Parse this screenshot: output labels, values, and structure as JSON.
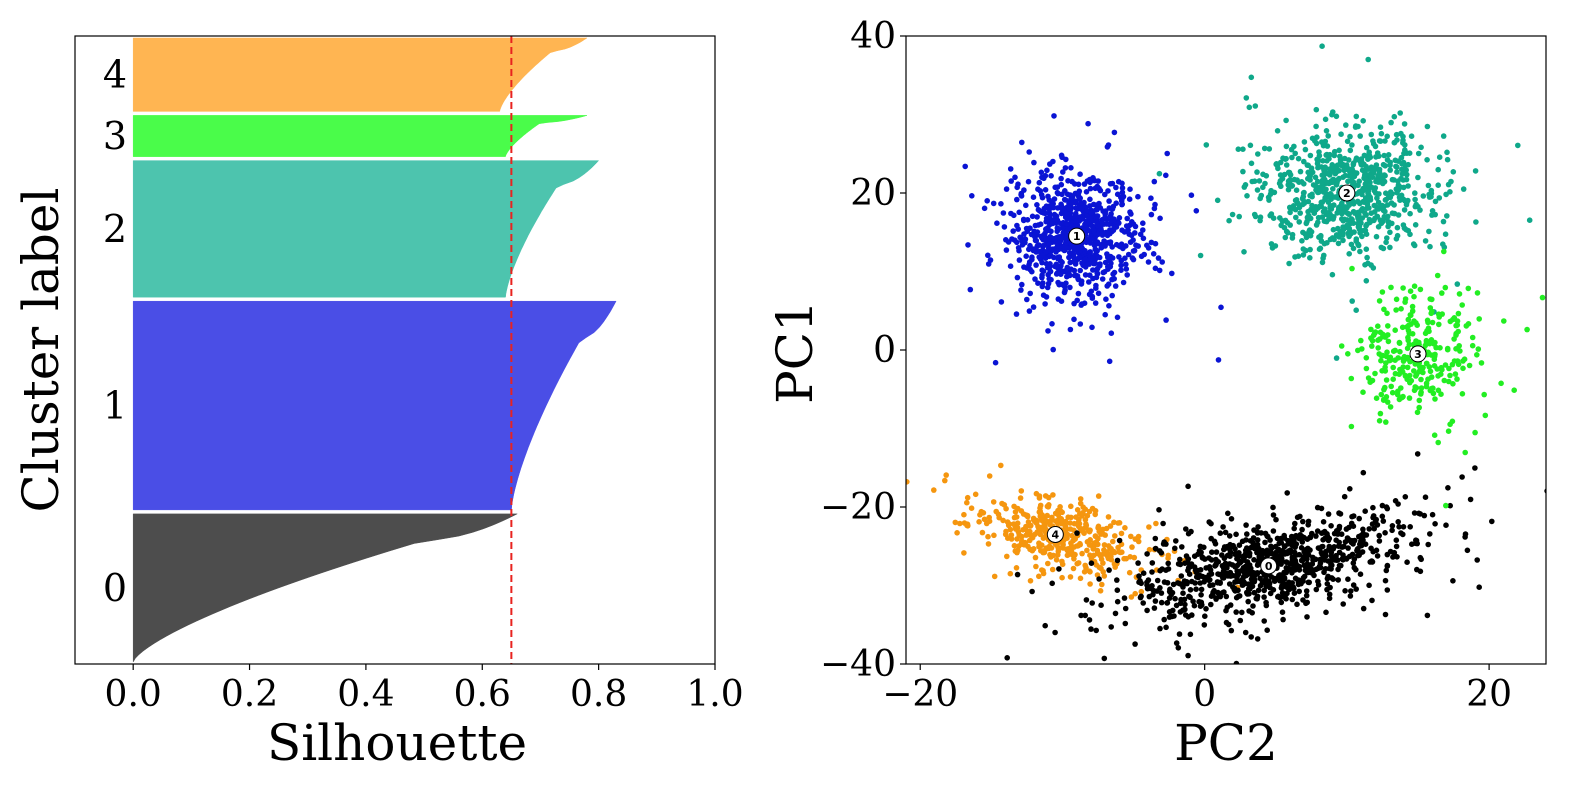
{
  "chart_data": [
    {
      "type": "silhouette",
      "xlabel": "Silhouette",
      "ylabel": "Cluster label",
      "xlim": [
        -0.1,
        1.0
      ],
      "xticks": [
        "0.0",
        "0.2",
        "0.4",
        "0.6",
        "0.8",
        "1.0"
      ],
      "average_score": 0.65,
      "average_line_color": "#e8231f",
      "clusters": [
        {
          "label": "0",
          "size": 1150,
          "min": 0.0,
          "knee": 0.5,
          "max": 0.66,
          "color": "#4d4d4d"
        },
        {
          "label": "1",
          "size": 1620,
          "min": 0.65,
          "knee": 0.77,
          "max": 0.83,
          "color": "#4a4ee6"
        },
        {
          "label": "2",
          "size": 1060,
          "min": 0.64,
          "knee": 0.73,
          "max": 0.8,
          "color": "#4dc4ae"
        },
        {
          "label": "3",
          "size": 320,
          "min": 0.64,
          "knee": 0.7,
          "max": 0.78,
          "color": "#4afc4a"
        },
        {
          "label": "4",
          "size": 570,
          "min": 0.63,
          "knee": 0.72,
          "max": 0.78,
          "color": "#ffb552"
        }
      ]
    },
    {
      "type": "scatter",
      "xlabel": "PC2",
      "ylabel": "PC1",
      "xlim": [
        -21,
        24
      ],
      "ylim": [
        -40,
        40
      ],
      "xticks": [
        "−20",
        "0",
        "20"
      ],
      "yticks": [
        "−40",
        "−20",
        "0",
        "20",
        "40"
      ],
      "clusters": [
        {
          "label": "0",
          "center": [
            4.5,
            -27.5
          ],
          "color": "#000000",
          "spread": [
            5.0,
            2.8
          ],
          "tilt": 0.35,
          "points": 900
        },
        {
          "label": "1",
          "center": [
            -9.0,
            14.5
          ],
          "color": "#0a14d4",
          "spread": [
            2.2,
            4.0
          ],
          "tilt": 0.0,
          "points": 800
        },
        {
          "label": "2",
          "center": [
            10.0,
            20.0
          ],
          "color": "#0fa88a",
          "spread": [
            3.0,
            3.8
          ],
          "tilt": 0.0,
          "points": 750
        },
        {
          "label": "3",
          "center": [
            15.0,
            -0.5
          ],
          "color": "#22ee22",
          "spread": [
            2.0,
            4.5
          ],
          "tilt": 0.0,
          "points": 280
        },
        {
          "label": "4",
          "center": [
            -10.5,
            -23.5
          ],
          "color": "#f5960f",
          "spread": [
            3.0,
            2.2
          ],
          "tilt": -0.4,
          "points": 420
        }
      ]
    }
  ]
}
